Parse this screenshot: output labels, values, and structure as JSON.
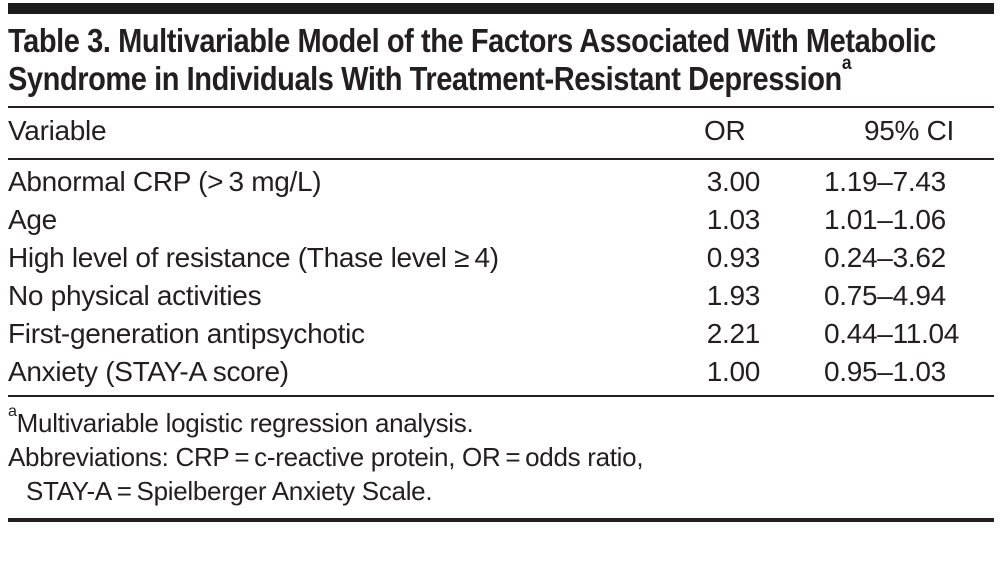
{
  "colors": {
    "text": "#231f20",
    "rule": "#231f20",
    "top_bar": "#1c1c1c",
    "background": "#ffffff"
  },
  "table": {
    "title": "Table 3. Multivariable Model of the Factors Associated With Metabolic Syndrome in Individuals With Treatment-Resistant Depression",
    "title_footnote_marker": "a",
    "columns": [
      "Variable",
      "OR",
      "95% CI"
    ],
    "rows": [
      {
        "variable": "Abnormal CRP (> 3 mg/L)",
        "or": "3.00",
        "ci": "1.19–7.43"
      },
      {
        "variable": "Age",
        "or": "1.03",
        "ci": "1.01–1.06"
      },
      {
        "variable": "High level of resistance (Thase level ≥ 4)",
        "or": "0.93",
        "ci": "0.24–3.62"
      },
      {
        "variable": "No physical activities",
        "or": "1.93",
        "ci": "0.75–4.94"
      },
      {
        "variable": "First-generation antipsychotic",
        "or": "2.21",
        "ci": "0.44–11.04"
      },
      {
        "variable": "Anxiety (STAY-A score)",
        "or": "1.00",
        "ci": "0.95–1.03"
      }
    ]
  },
  "footnotes": {
    "marker": "a",
    "note": "Multivariable logistic regression analysis.",
    "abbreviations_line1": "Abbreviations: CRP = c-reactive protein, OR = odds ratio,",
    "abbreviations_line2": "STAY-A = Spielberger Anxiety Scale."
  }
}
